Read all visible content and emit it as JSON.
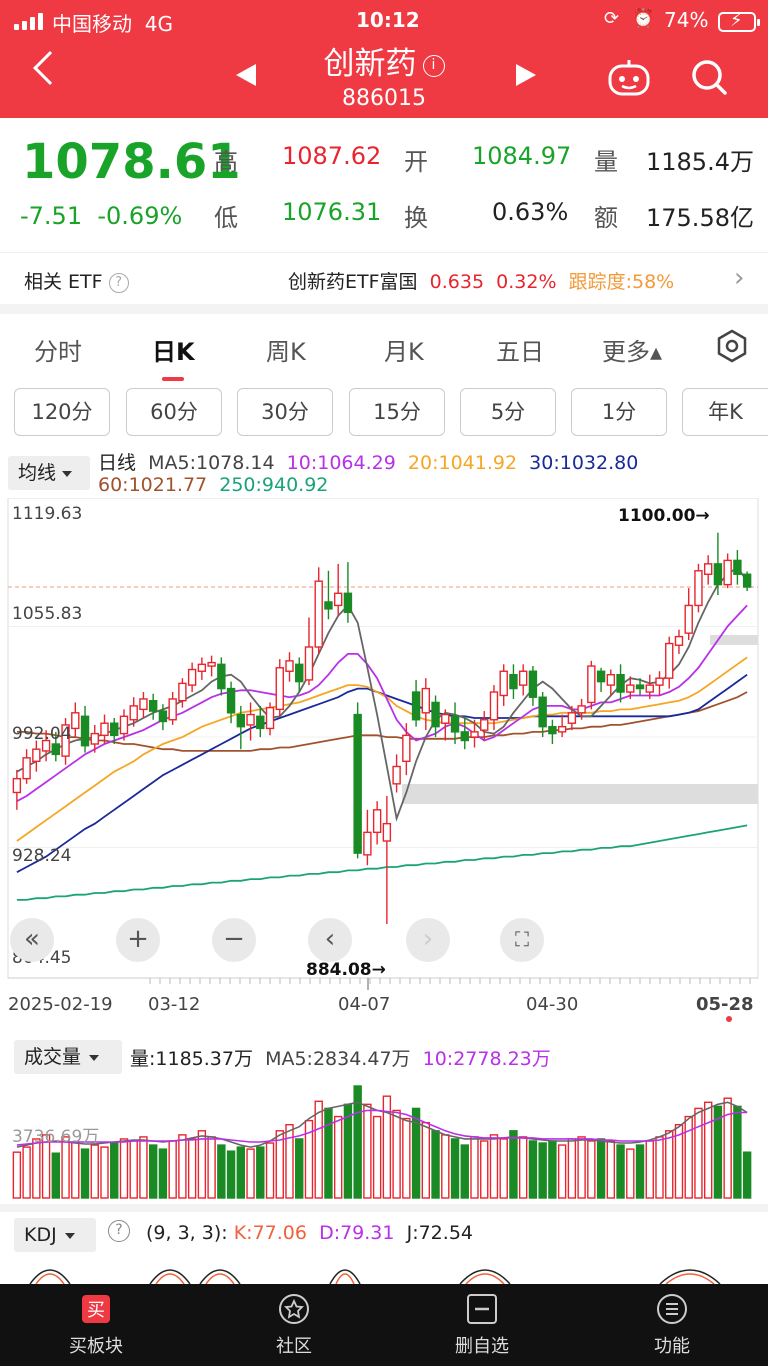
{
  "status": {
    "carrier": "中国移动",
    "network": "4G",
    "time": "10:12",
    "battery": "74%"
  },
  "header": {
    "title": "创新药",
    "code": "886015",
    "info_glyph": "i"
  },
  "quote": {
    "price": "1078.61",
    "change": "-7.51",
    "change_pct": "-0.69%",
    "high_label": "高",
    "high": "1087.62",
    "open_label": "开",
    "open": "1084.97",
    "volume_label": "量",
    "volume": "1185.4万",
    "low_label": "低",
    "low": "1076.31",
    "turnover_label": "换",
    "turnover": "0.63%",
    "amount_label": "额",
    "amount": "175.58亿"
  },
  "etf": {
    "label": "相关 ETF",
    "help": "?",
    "name": "创新药ETF富国",
    "price": "0.635",
    "pct": "0.32%",
    "track": "跟踪度:58%",
    "arrow": "›"
  },
  "tabs": [
    "分时",
    "日K",
    "周K",
    "月K",
    "五日",
    "更多▴"
  ],
  "periods": [
    "120分",
    "60分",
    "30分",
    "15分",
    "5分",
    "1分",
    "年K"
  ],
  "legend": {
    "ma_button": "均线",
    "line_type": "日线",
    "ma5": "MA5:1078.14",
    "ma10": "10:1064.29",
    "ma20": "20:1041.92",
    "ma30": "30:1032.80",
    "ma60": "60:1021.77",
    "ma250": "250:940.92"
  },
  "colors": {
    "up": "#e8252e",
    "down": "#1a8a24",
    "ma5": "#666666",
    "ma10": "#b830e8",
    "ma20": "#f5a623",
    "ma30": "#1a2a9a",
    "ma60": "#a0522d",
    "ma250": "#1aa37a"
  },
  "chart_data": {
    "type": "candlestick",
    "title": "",
    "y_ticks": [
      "1119.63",
      "1055.83",
      "992.04",
      "928.24",
      "864.45"
    ],
    "ylim": [
      864.45,
      1119.63
    ],
    "x_labels": [
      "2025-02-19",
      "03-12",
      "04-07",
      "04-30",
      "05-28"
    ],
    "annotations": {
      "high_mark": "1100.00→",
      "low_mark": "884.08→"
    },
    "candles": [
      [
        960,
        968,
        950,
        973
      ],
      [
        968,
        980,
        965,
        985
      ],
      [
        978,
        985,
        972,
        990
      ],
      [
        984,
        990,
        978,
        996
      ],
      [
        988,
        982,
        978,
        995
      ],
      [
        981,
        999,
        976,
        1003
      ],
      [
        997,
        1006,
        992,
        1012
      ],
      [
        1004,
        987,
        983,
        1010
      ],
      [
        988,
        994,
        983,
        999
      ],
      [
        993,
        1000,
        988,
        1005
      ],
      [
        1000,
        993,
        988,
        1003
      ],
      [
        994,
        1004,
        990,
        1008
      ],
      [
        1002,
        1010,
        998,
        1015
      ],
      [
        1008,
        1014,
        1003,
        1018
      ],
      [
        1013,
        1007,
        1002,
        1017
      ],
      [
        1007,
        1001,
        996,
        1011
      ],
      [
        1002,
        1014,
        999,
        1018
      ],
      [
        1013,
        1023,
        1009,
        1026
      ],
      [
        1022,
        1031,
        1018,
        1035
      ],
      [
        1030,
        1034,
        1025,
        1038
      ],
      [
        1033,
        1035,
        1027,
        1039
      ],
      [
        1034,
        1020,
        1016,
        1038
      ],
      [
        1020,
        1006,
        1000,
        1024
      ],
      [
        1005,
        998,
        985,
        1010
      ],
      [
        999,
        1005,
        990,
        1012
      ],
      [
        1004,
        997,
        992,
        1010
      ],
      [
        997,
        1009,
        993,
        1012
      ],
      [
        1008,
        1032,
        1004,
        1037
      ],
      [
        1030,
        1036,
        1024,
        1041
      ],
      [
        1034,
        1024,
        1018,
        1038
      ],
      [
        1025,
        1044,
        1022,
        1061
      ],
      [
        1044,
        1082,
        1040,
        1090
      ],
      [
        1070,
        1066,
        1060,
        1088
      ],
      [
        1068,
        1075,
        1062,
        1092
      ],
      [
        1075,
        1064,
        1058,
        1093
      ],
      [
        1005,
        925,
        922,
        1012
      ],
      [
        924,
        937,
        918,
        950
      ],
      [
        937,
        950,
        930,
        955
      ],
      [
        932,
        942,
        884.08,
        958
      ],
      [
        965,
        975,
        960,
        982
      ],
      [
        978,
        993,
        970,
        1000
      ],
      [
        1018,
        1002,
        998,
        1025
      ],
      [
        1006,
        1020,
        996,
        1026
      ],
      [
        1012,
        998,
        992,
        1016
      ],
      [
        1000,
        1005,
        990,
        1008
      ],
      [
        1004,
        995,
        988,
        1012
      ],
      [
        995,
        990,
        985,
        1004
      ],
      [
        992,
        995,
        986,
        1002
      ],
      [
        996,
        1002,
        990,
        1007
      ],
      [
        1002,
        1018,
        996,
        1022
      ],
      [
        1016,
        1030,
        1010,
        1034
      ],
      [
        1028,
        1020,
        1014,
        1034
      ],
      [
        1022,
        1030,
        1016,
        1034
      ],
      [
        1030,
        1015,
        1010,
        1033
      ],
      [
        1015,
        998,
        992,
        1018
      ],
      [
        998,
        994,
        988,
        1002
      ],
      [
        995,
        998,
        992,
        1005
      ],
      [
        1000,
        1006,
        996,
        1010
      ],
      [
        1006,
        1010,
        1002,
        1014
      ],
      [
        1012,
        1033,
        1008,
        1036
      ],
      [
        1030,
        1024,
        1018,
        1032
      ],
      [
        1022,
        1028,
        1016,
        1031
      ],
      [
        1028,
        1018,
        1012,
        1034
      ],
      [
        1018,
        1022,
        1014,
        1027
      ],
      [
        1022,
        1020,
        1016,
        1026
      ],
      [
        1018,
        1022,
        1014,
        1028
      ],
      [
        1022,
        1026,
        1016,
        1030
      ],
      [
        1026,
        1046,
        1020,
        1050
      ],
      [
        1045,
        1050,
        1040,
        1054
      ],
      [
        1052,
        1068,
        1048,
        1078
      ],
      [
        1068,
        1088,
        1064,
        1092
      ],
      [
        1086,
        1092,
        1080,
        1097
      ],
      [
        1092,
        1080,
        1074,
        1110
      ],
      [
        1080,
        1094,
        1078,
        1098
      ],
      [
        1094,
        1086,
        1080,
        1100
      ],
      [
        1086,
        1078.61,
        1076.31,
        1087.62
      ]
    ],
    "ma": {
      "ma5": [
        972,
        975,
        978,
        982,
        985,
        988,
        990,
        991,
        992,
        994,
        996,
        998,
        1000,
        1003,
        1006,
        1008,
        1010,
        1013,
        1016,
        1019,
        1024,
        1027,
        1028,
        1024,
        1016,
        1009,
        1003,
        1004,
        1010,
        1018,
        1028,
        1040,
        1052,
        1062,
        1068,
        1058,
        1032,
        1005,
        975,
        945,
        960,
        978,
        992,
        1002,
        1006,
        1005,
        1003,
        1000,
        995,
        994,
        998,
        1006,
        1013,
        1020,
        1024,
        1020,
        1014,
        1008,
        1004,
        1004,
        1010,
        1016,
        1022,
        1026,
        1025,
        1023,
        1024,
        1028,
        1034,
        1044,
        1058,
        1070,
        1080,
        1086,
        1090,
        1082
      ],
      "ma10": [
        955,
        958,
        962,
        966,
        970,
        974,
        978,
        982,
        985,
        988,
        990,
        992,
        994,
        996,
        999,
        1002,
        1004,
        1006,
        1009,
        1012,
        1015,
        1017,
        1018,
        1019,
        1019,
        1018,
        1017,
        1016,
        1015,
        1016,
        1018,
        1022,
        1028,
        1035,
        1040,
        1040,
        1034,
        1026,
        1014,
        1002,
        995,
        990,
        992,
        994,
        998,
        1000,
        998,
        994,
        990,
        992,
        996,
        1000,
        1004,
        1008,
        1010,
        1010,
        1010,
        1008,
        1008,
        1010,
        1012,
        1012,
        1014,
        1016,
        1016,
        1016,
        1016,
        1018,
        1021,
        1026,
        1032,
        1040,
        1048,
        1056,
        1062,
        1068
      ],
      "ma20": [
        932,
        936,
        940,
        944,
        948,
        952,
        956,
        960,
        964,
        968,
        972,
        975,
        978,
        982,
        985,
        988,
        990,
        992,
        995,
        998,
        1000,
        1002,
        1004,
        1006,
        1007,
        1008,
        1009,
        1010,
        1011,
        1012,
        1014,
        1016,
        1018,
        1020,
        1022,
        1022,
        1021,
        1018,
        1015,
        1010,
        1007,
        1004,
        1002,
        1001,
        1000,
        1000,
        1000,
        1000,
        1000,
        1000,
        1001,
        1002,
        1003,
        1004,
        1005,
        1005,
        1006,
        1006,
        1006,
        1006,
        1007,
        1007,
        1008,
        1008,
        1009,
        1010,
        1011,
        1012,
        1013,
        1015,
        1018,
        1022,
        1026,
        1030,
        1034,
        1038
      ],
      "ma30": [
        914,
        917,
        920,
        923,
        927,
        931,
        935,
        939,
        942,
        946,
        950,
        954,
        958,
        962,
        966,
        970,
        973,
        976,
        979,
        982,
        985,
        988,
        991,
        994,
        997,
        999,
        1001,
        1003,
        1005,
        1007,
        1009,
        1011,
        1013,
        1015,
        1018,
        1020,
        1020,
        1018,
        1016,
        1014,
        1012,
        1010,
        1008,
        1006,
        1005,
        1004,
        1004,
        1003,
        1003,
        1003,
        1003,
        1003,
        1003,
        1004,
        1004,
        1004,
        1004,
        1004,
        1004,
        1004,
        1004,
        1004,
        1004,
        1004,
        1004,
        1004,
        1004,
        1004,
        1005,
        1006,
        1008,
        1012,
        1016,
        1020,
        1024,
        1028
      ],
      "ma60": [
        995,
        995,
        994,
        994,
        993,
        992,
        992,
        991,
        990,
        990,
        989,
        988,
        988,
        987,
        986,
        985,
        985,
        984,
        984,
        984,
        984,
        984,
        984,
        984,
        984,
        985,
        985,
        986,
        986,
        987,
        988,
        989,
        990,
        991,
        992,
        993,
        993,
        993,
        992,
        992,
        991,
        991,
        991,
        991,
        991,
        991,
        992,
        992,
        992,
        993,
        993,
        994,
        994,
        995,
        995,
        996,
        996,
        997,
        997,
        998,
        998,
        999,
        999,
        1000,
        1001,
        1002,
        1003,
        1004,
        1005,
        1006,
        1007,
        1009,
        1011,
        1013,
        1015,
        1018
      ],
      "ma250": [
        898,
        898,
        899,
        899,
        900,
        900,
        901,
        901,
        902,
        902,
        903,
        903,
        904,
        904,
        905,
        905,
        906,
        906,
        907,
        907,
        908,
        908,
        909,
        909,
        910,
        910,
        911,
        911,
        912,
        912,
        913,
        913,
        914,
        914,
        915,
        915,
        916,
        916,
        917,
        917,
        918,
        918,
        919,
        919,
        920,
        920,
        921,
        921,
        922,
        922,
        923,
        923,
        924,
        924,
        925,
        925,
        926,
        926,
        927,
        927,
        928,
        928,
        929,
        929,
        930,
        931,
        932,
        933,
        934,
        935,
        936,
        937,
        938,
        939,
        940,
        941
      ]
    }
  },
  "volume": {
    "button": "成交量",
    "vol": "量:1185.37万",
    "ma5": "MA5:2834.47万",
    "ma10": "10:2778.23万",
    "y_tick": "3736.69万",
    "bars": [
      45,
      50,
      58,
      62,
      44,
      60,
      55,
      48,
      52,
      50,
      54,
      58,
      56,
      60,
      52,
      48,
      56,
      62,
      58,
      66,
      60,
      52,
      46,
      50,
      48,
      50,
      54,
      66,
      72,
      58,
      76,
      95,
      88,
      80,
      92,
      110,
      92,
      80,
      100,
      86,
      78,
      88,
      74,
      66,
      62,
      58,
      52,
      60,
      56,
      62,
      58,
      66,
      60,
      56,
      54,
      56,
      52,
      58,
      60,
      56,
      58,
      56,
      52,
      48,
      52,
      56,
      60,
      66,
      72,
      80,
      88,
      94,
      90,
      98,
      90,
      45
    ],
    "ma5_line": [
      50,
      52,
      54,
      55,
      56,
      55,
      54,
      53,
      53,
      54,
      55,
      56,
      57,
      57,
      56,
      55,
      56,
      57,
      59,
      61,
      60,
      58,
      55,
      52,
      50,
      52,
      56,
      62,
      66,
      70,
      78,
      84,
      88,
      90,
      92,
      94,
      90,
      86,
      84,
      80,
      76,
      74,
      70,
      66,
      62,
      60,
      58,
      58,
      58,
      58,
      59,
      60,
      59,
      58,
      57,
      56,
      56,
      56,
      57,
      57,
      56,
      55,
      54,
      54,
      55,
      57,
      60,
      64,
      70,
      78,
      84,
      88,
      92,
      94,
      90,
      84
    ],
    "ma10_line": [
      52,
      53,
      54,
      55,
      55,
      55,
      55,
      55,
      55,
      55,
      55,
      55,
      56,
      56,
      56,
      56,
      56,
      57,
      57,
      58,
      58,
      58,
      57,
      56,
      55,
      55,
      56,
      57,
      59,
      61,
      64,
      68,
      72,
      76,
      80,
      84,
      86,
      86,
      85,
      84,
      82,
      78,
      74,
      70,
      66,
      63,
      61,
      60,
      59,
      59,
      59,
      59,
      59,
      59,
      58,
      58,
      58,
      58,
      58,
      58,
      57,
      57,
      56,
      56,
      56,
      56,
      57,
      59,
      62,
      66,
      70,
      74,
      78,
      82,
      84,
      84
    ]
  },
  "kdj": {
    "button": "KDJ",
    "help": "?",
    "params": "(9, 3, 3):",
    "k": "K:77.06",
    "d": "D:79.31",
    "j": "J:72.54"
  },
  "nav": [
    {
      "label": "买板块",
      "icon": "buy-icon",
      "glyph": "买"
    },
    {
      "label": "社区",
      "icon": "community-icon"
    },
    {
      "label": "删自选",
      "icon": "remove-watchlist-icon"
    },
    {
      "label": "功能",
      "icon": "menu-icon"
    }
  ]
}
